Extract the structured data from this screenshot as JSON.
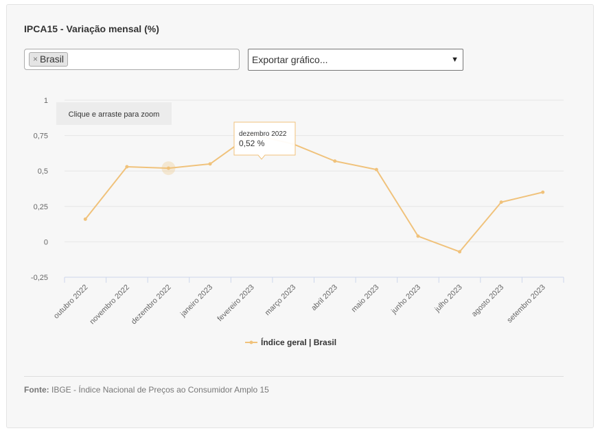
{
  "title": "IPCA15 - Variação mensal (%)",
  "filter": {
    "tag_label": "Brasil",
    "remove_glyph": "×"
  },
  "export_select": {
    "selected": "Exportar gráfico..."
  },
  "zoom_hint": "Clique e arraste para zoom",
  "tooltip": {
    "date": "dezembro 2022",
    "value": "0,52 %"
  },
  "footer": {
    "label": "Fonte:",
    "text": "IBGE - Índice Nacional de Preços ao Consumidor Amplo 15"
  },
  "chart_data": {
    "type": "line",
    "categories": [
      "outubro 2022",
      "novembro 2022",
      "dezembro 2022",
      "janeiro 2023",
      "fevereiro 2023",
      "março 2023",
      "abril 2023",
      "maio 2023",
      "junho 2023",
      "julho 2023",
      "agosto 2023",
      "setembro 2023"
    ],
    "series": [
      {
        "name": "Índice geral | Brasil",
        "color": "#f0c27b",
        "values": [
          0.16,
          0.53,
          0.52,
          0.55,
          0.76,
          0.69,
          0.57,
          0.51,
          0.04,
          -0.07,
          0.28,
          0.35
        ]
      }
    ],
    "ylim": [
      -0.25,
      1
    ],
    "yticks": [
      1,
      0.75,
      0.5,
      0.25,
      0,
      -0.25
    ],
    "ytick_labels": [
      "1",
      "0,75",
      "0,5",
      "0,25",
      "0",
      "-0,25"
    ],
    "highlight_index": 2,
    "grid": true,
    "legend": "bottom-center"
  }
}
